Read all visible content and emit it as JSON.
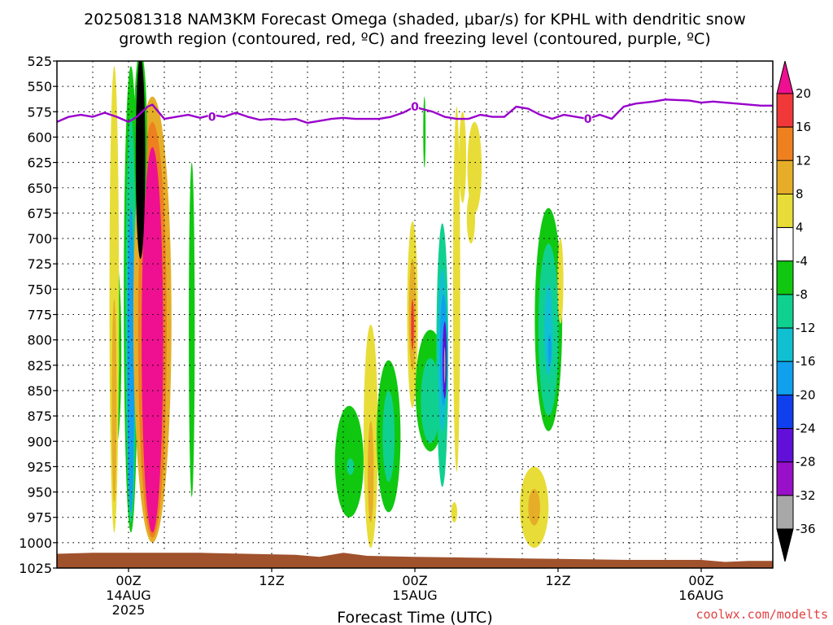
{
  "chart_data": {
    "type": "heatmap",
    "title_line1": "2025081318 NAM3KM Forecast Omega (shaded, μbar/s) for KPHL with dendritic snow",
    "title_line2": "growth region (contoured, red, ºC) and freezing level (contoured, purple, ºC)",
    "xlabel": "Forecast Time (UTC)",
    "credit": "coolwx.com/modelts",
    "y_axis": {
      "ticks": [
        525,
        550,
        575,
        600,
        625,
        650,
        675,
        700,
        725,
        750,
        775,
        800,
        825,
        850,
        875,
        900,
        925,
        950,
        975,
        1000,
        1025
      ],
      "range": [
        525,
        1025
      ],
      "units": "hPa"
    },
    "x_axis": {
      "range_hours": [
        -6,
        54
      ],
      "ticks": [
        {
          "hour": 0,
          "lines": [
            "00Z",
            "14AUG",
            "2025"
          ]
        },
        {
          "hour": 12,
          "lines": [
            "12Z"
          ]
        },
        {
          "hour": 24,
          "lines": [
            "00Z",
            "15AUG"
          ]
        },
        {
          "hour": 36,
          "lines": [
            "12Z"
          ]
        },
        {
          "hour": 48,
          "lines": [
            "00Z",
            "16AUG"
          ]
        }
      ]
    },
    "grid": true,
    "colorbar": {
      "labels": [
        "20",
        "16",
        "12",
        "8",
        "4",
        "-4",
        "-8",
        "-12",
        "-16",
        "-20",
        "-24",
        "-28",
        "-32",
        "-36"
      ],
      "bins": [
        {
          "color": "#ee1090"
        },
        {
          "color": "#f03838"
        },
        {
          "color": "#ee8020"
        },
        {
          "color": "#e6ae28"
        },
        {
          "color": "#e8dd38"
        },
        {
          "color": "#ffffff"
        },
        {
          "color": "#10c810"
        },
        {
          "color": "#10d090"
        },
        {
          "color": "#10c0d0"
        },
        {
          "color": "#10a0ee"
        },
        {
          "color": "#1040ee"
        },
        {
          "color": "#6010d8"
        },
        {
          "color": "#9810c8"
        },
        {
          "color": "#a8a8a8"
        },
        {
          "color": "#000000"
        }
      ]
    },
    "freezing_level": {
      "color": "#9900cc",
      "label": "0",
      "points": [
        [
          -6,
          585
        ],
        [
          -5,
          580
        ],
        [
          -4,
          578
        ],
        [
          -3,
          580
        ],
        [
          -2,
          576
        ],
        [
          -1,
          580
        ],
        [
          0,
          585
        ],
        [
          0.7,
          580
        ],
        [
          1.6,
          570
        ],
        [
          2,
          568
        ],
        [
          3,
          582
        ],
        [
          4,
          580
        ],
        [
          5,
          578
        ],
        [
          6,
          581
        ],
        [
          7,
          578
        ],
        [
          8,
          580
        ],
        [
          9,
          576
        ],
        [
          10,
          580
        ],
        [
          11,
          583
        ],
        [
          12,
          582
        ],
        [
          13,
          583
        ],
        [
          14,
          582
        ],
        [
          15,
          586
        ],
        [
          16,
          584
        ],
        [
          17,
          582
        ],
        [
          18,
          581
        ],
        [
          19,
          582
        ],
        [
          20,
          582
        ],
        [
          21,
          582
        ],
        [
          22,
          580
        ],
        [
          23,
          576
        ],
        [
          24,
          570
        ],
        [
          24.5,
          572
        ],
        [
          25.5,
          575
        ],
        [
          26.5,
          580
        ],
        [
          27.5,
          582
        ],
        [
          28.5,
          582
        ],
        [
          29.5,
          578
        ],
        [
          30.5,
          580
        ],
        [
          31.5,
          580
        ],
        [
          32.5,
          570
        ],
        [
          33.5,
          572
        ],
        [
          34.5,
          578
        ],
        [
          35.5,
          582
        ],
        [
          36.5,
          578
        ],
        [
          37.5,
          580
        ],
        [
          38.5,
          582
        ],
        [
          39.5,
          578
        ],
        [
          40.5,
          582
        ],
        [
          41.5,
          570
        ],
        [
          42.5,
          567
        ],
        [
          44,
          565
        ],
        [
          45,
          563
        ],
        [
          47,
          564
        ],
        [
          48,
          566
        ],
        [
          49,
          565
        ],
        [
          50,
          566
        ],
        [
          51,
          567
        ],
        [
          52,
          568
        ],
        [
          53,
          569
        ],
        [
          54,
          569
        ]
      ]
    },
    "freezing_labels": [
      [
        7,
        580
      ],
      [
        24,
        570
      ],
      [
        38.5,
        582
      ]
    ],
    "terrain": {
      "color": "#a0522d",
      "points": [
        [
          -6,
          1011
        ],
        [
          -3,
          1010
        ],
        [
          0,
          1010
        ],
        [
          6,
          1010
        ],
        [
          14,
          1012
        ],
        [
          16,
          1014
        ],
        [
          18,
          1010
        ],
        [
          20,
          1013
        ],
        [
          24,
          1014
        ],
        [
          30,
          1015
        ],
        [
          36,
          1016
        ],
        [
          42,
          1017
        ],
        [
          48,
          1017
        ],
        [
          50,
          1019
        ],
        [
          52,
          1018
        ],
        [
          54,
          1018
        ]
      ]
    },
    "omega_blobs": [
      {
        "cx": -1.0,
        "cy": 812,
        "rx": 0.4,
        "ry": 90,
        "color": "#10c810"
      },
      {
        "cx": -0.95,
        "cy": 820,
        "rx": 0.15,
        "ry": 30,
        "color": "#e8dd38"
      },
      {
        "cx": -1.2,
        "cy": 760,
        "rx": 0.4,
        "ry": 230,
        "color": "#e8dd38"
      },
      {
        "cx": -1.2,
        "cy": 860,
        "rx": 0.2,
        "ry": 100,
        "color": "#e6ae28"
      },
      {
        "cx": 0.2,
        "cy": 760,
        "rx": 0.6,
        "ry": 230,
        "color": "#10c810"
      },
      {
        "cx": 0.2,
        "cy": 780,
        "rx": 0.45,
        "ry": 200,
        "color": "#10d090"
      },
      {
        "cx": 0.2,
        "cy": 820,
        "rx": 0.3,
        "ry": 150,
        "color": "#10a0ee"
      },
      {
        "cx": 0.9,
        "cy": 700,
        "rx": 0.25,
        "ry": 220,
        "color": "#f03838"
      },
      {
        "cx": 2.0,
        "cy": 780,
        "rx": 1.6,
        "ry": 220,
        "color": "#e6ae28"
      },
      {
        "cx": 2.0,
        "cy": 790,
        "rx": 1.2,
        "ry": 205,
        "color": "#ee8020"
      },
      {
        "cx": 2.0,
        "cy": 800,
        "rx": 0.9,
        "ry": 190,
        "color": "#ee1090"
      },
      {
        "cx": 1.0,
        "cy": 600,
        "rx": 0.55,
        "ry": 85,
        "color": "#10c810"
      },
      {
        "cx": 1.0,
        "cy": 620,
        "rx": 0.4,
        "ry": 100,
        "color": "#000000"
      },
      {
        "cx": 5.3,
        "cy": 790,
        "rx": 0.25,
        "ry": 165,
        "color": "#10c810"
      },
      {
        "cx": 18.5,
        "cy": 920,
        "rx": 1.2,
        "ry": 55,
        "color": "#10c810"
      },
      {
        "cx": 18.6,
        "cy": 925,
        "rx": 0.3,
        "ry": 8,
        "color": "#10d090"
      },
      {
        "cx": 20.3,
        "cy": 895,
        "rx": 0.6,
        "ry": 110,
        "color": "#e8dd38"
      },
      {
        "cx": 20.3,
        "cy": 930,
        "rx": 0.25,
        "ry": 50,
        "color": "#e6ae28"
      },
      {
        "cx": 21.8,
        "cy": 895,
        "rx": 1.0,
        "ry": 75,
        "color": "#10c810"
      },
      {
        "cx": 21.8,
        "cy": 895,
        "rx": 0.5,
        "ry": 45,
        "color": "#10d090"
      },
      {
        "cx": 23.8,
        "cy": 775,
        "rx": 0.45,
        "ry": 92,
        "color": "#e8dd38"
      },
      {
        "cx": 23.8,
        "cy": 775,
        "rx": 0.3,
        "ry": 55,
        "color": "#e6ae28"
      },
      {
        "cx": 23.8,
        "cy": 785,
        "rx": 0.12,
        "ry": 25,
        "color": "#f03838"
      },
      {
        "cx": 25.3,
        "cy": 850,
        "rx": 1.25,
        "ry": 60,
        "color": "#10c810"
      },
      {
        "cx": 25.3,
        "cy": 860,
        "rx": 0.8,
        "ry": 42,
        "color": "#10d090"
      },
      {
        "cx": 26.3,
        "cy": 815,
        "rx": 0.5,
        "ry": 130,
        "color": "#10d090"
      },
      {
        "cx": 26.3,
        "cy": 810,
        "rx": 0.4,
        "ry": 80,
        "color": "#10c0d0"
      },
      {
        "cx": 26.4,
        "cy": 810,
        "rx": 0.3,
        "ry": 55,
        "color": "#10a0ee"
      },
      {
        "cx": 26.5,
        "cy": 820,
        "rx": 0.18,
        "ry": 38,
        "color": "#6010d8"
      },
      {
        "cx": 26.5,
        "cy": 825,
        "rx": 0.06,
        "ry": 18,
        "color": "#a8a8a8"
      },
      {
        "cx": 24.8,
        "cy": 595,
        "rx": 0.1,
        "ry": 35,
        "color": "#10c810"
      },
      {
        "cx": 27.5,
        "cy": 750,
        "rx": 0.3,
        "ry": 180,
        "color": "#e8dd38"
      },
      {
        "cx": 27.3,
        "cy": 970,
        "rx": 0.25,
        "ry": 10,
        "color": "#e8dd38"
      },
      {
        "cx": 28.0,
        "cy": 620,
        "rx": 0.3,
        "ry": 45,
        "color": "#e8dd38"
      },
      {
        "cx": 29.0,
        "cy": 630,
        "rx": 0.6,
        "ry": 45,
        "color": "#e8dd38"
      },
      {
        "cx": 28.7,
        "cy": 680,
        "rx": 0.35,
        "ry": 25,
        "color": "#e8dd38"
      },
      {
        "cx": 35.2,
        "cy": 780,
        "rx": 1.15,
        "ry": 110,
        "color": "#10c810"
      },
      {
        "cx": 35.2,
        "cy": 790,
        "rx": 0.85,
        "ry": 85,
        "color": "#10d090"
      },
      {
        "cx": 35.2,
        "cy": 790,
        "rx": 0.35,
        "ry": 45,
        "color": "#10c0d0"
      },
      {
        "cx": 35.3,
        "cy": 810,
        "rx": 0.15,
        "ry": 15,
        "color": "#10a0ee"
      },
      {
        "cx": 36.2,
        "cy": 742,
        "rx": 0.25,
        "ry": 42,
        "color": "#e8dd38"
      },
      {
        "cx": 34.0,
        "cy": 965,
        "rx": 1.2,
        "ry": 40,
        "color": "#e8dd38"
      },
      {
        "cx": 34.0,
        "cy": 965,
        "rx": 0.5,
        "ry": 18,
        "color": "#e6ae28"
      }
    ]
  }
}
